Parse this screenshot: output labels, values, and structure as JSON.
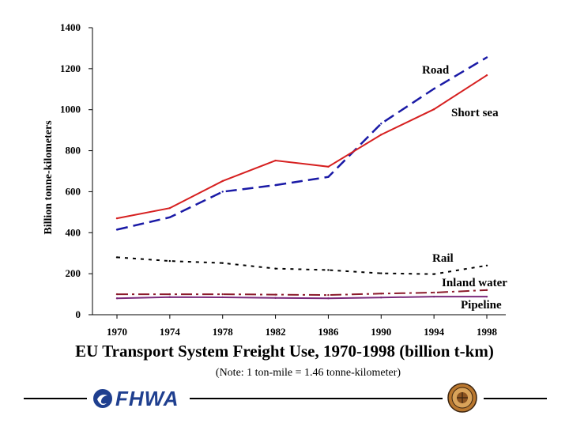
{
  "chart_data": {
    "type": "line",
    "title": "EU Transport System Freight Use, 1970-1998 (billion t-km)",
    "note": "(Note:  1 ton-mile = 1.46 tonne-kilometer)",
    "ylabel": "Billion tonne-kilometers",
    "xlabel": "",
    "x": [
      1970,
      1974,
      1978,
      1982,
      1986,
      1990,
      1994,
      1998
    ],
    "x_ticks": [
      "1970",
      "1974",
      "1978",
      "1982",
      "1986",
      "1990",
      "1994",
      "1998"
    ],
    "y_ticks": [
      "0",
      "200",
      "400",
      "600",
      "800",
      "1000",
      "1200",
      "1400"
    ],
    "ylim": [
      0,
      1400
    ],
    "grid": false,
    "legend": "none (series labelled directly on the plot)",
    "series": [
      {
        "name": "Road",
        "color": "#1a1aa6",
        "style": "dashed",
        "values": [
          415,
          475,
          600,
          632,
          672,
          932,
          1102,
          1255
        ]
      },
      {
        "name": "Short sea",
        "color": "#d62020",
        "style": "solid",
        "values": [
          470,
          520,
          652,
          752,
          722,
          878,
          1002,
          1168
        ]
      },
      {
        "name": "Rail",
        "color": "#000000",
        "style": "dotted",
        "values": [
          280,
          262,
          252,
          225,
          218,
          202,
          198,
          240
        ]
      },
      {
        "name": "Inland water",
        "color": "#8b1a2b",
        "style": "dashdot",
        "values": [
          100,
          100,
          100,
          98,
          96,
          103,
          108,
          120
        ]
      },
      {
        "name": "Pipeline",
        "color": "#7b2a7b",
        "style": "solid",
        "values": [
          80,
          86,
          85,
          82,
          80,
          84,
          88,
          88
        ]
      }
    ]
  },
  "footer": {
    "logo_text": "FHWA",
    "logo_color": "#1f3f8f",
    "icons": [
      "fhwa-swirl-icon",
      "dot-seal-icon"
    ]
  }
}
